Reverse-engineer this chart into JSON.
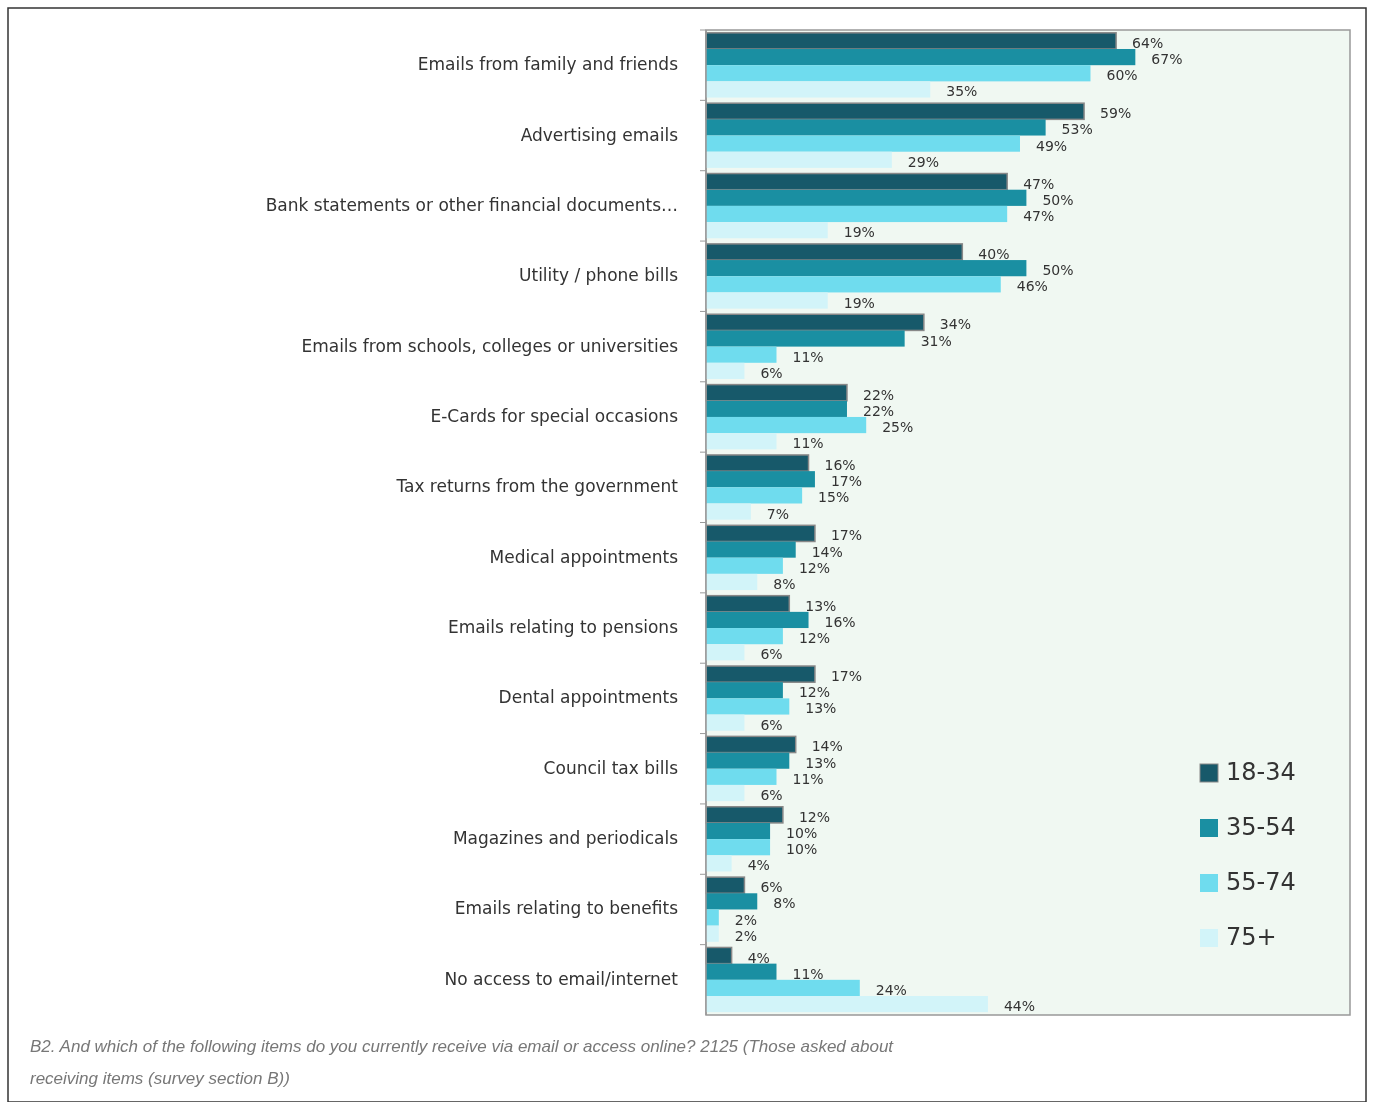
{
  "chart_data": {
    "type": "bar",
    "orientation": "horizontal",
    "legend": "bottom right",
    "categories": [
      "Emails from family and friends",
      "Advertising emails",
      "Bank statements or other financial documents…",
      "Utility / phone bills",
      "Emails from schools, colleges or universities",
      "E-Cards for special occasions",
      "Tax returns from the government",
      "Medical appointments",
      "Emails relating to pensions",
      "Dental appointments",
      "Council tax bills",
      "Magazines and periodicals",
      "Emails relating to benefits",
      "No access to email/internet"
    ],
    "series": [
      {
        "name": "18-34",
        "color": "#17596a",
        "values": [
          64,
          59,
          47,
          40,
          34,
          22,
          16,
          17,
          13,
          17,
          14,
          12,
          6,
          4
        ],
        "value_labels": [
          "64%",
          "59%",
          "47%",
          "40%",
          "34%",
          "22%",
          "16%",
          "17%",
          "13%",
          "17%",
          "14%",
          "12%",
          "6%",
          "4%"
        ]
      },
      {
        "name": "35-54",
        "color": "#1a8fa2",
        "values": [
          67,
          53,
          50,
          50,
          31,
          22,
          17,
          14,
          16,
          12,
          13,
          10,
          8,
          11
        ],
        "value_labels": [
          "67%",
          "53%",
          "50%",
          "50%",
          "31%",
          "22%",
          "17%",
          "14%",
          "16%",
          "12%",
          "13%",
          "10%",
          "8%",
          "11%"
        ]
      },
      {
        "name": "55-74",
        "color": "#6fdcee",
        "values": [
          60,
          49,
          47,
          46,
          11,
          25,
          15,
          12,
          12,
          13,
          11,
          10,
          2,
          24
        ],
        "value_labels": [
          "60%",
          "49%",
          "47%",
          "46%",
          "11%",
          "25%",
          "15%",
          "12%",
          "12%",
          "13%",
          "11%",
          "10%",
          "2%",
          "24%"
        ]
      },
      {
        "name": "75+",
        "color": "#d2f4f9",
        "values": [
          35,
          29,
          19,
          19,
          6,
          11,
          7,
          8,
          6,
          6,
          6,
          4,
          2,
          44
        ],
        "value_labels": [
          "35%",
          "29%",
          "19%",
          "19%",
          "6%",
          "11%",
          "7%",
          "8%",
          "6%",
          "6%",
          "6%",
          "4%",
          "2%",
          "44%"
        ]
      }
    ],
    "annotations": [
      "B2. And which of the following items do you currently receive via email or access online? 2125 (Those asked about receiving items (survey section B))"
    ]
  }
}
